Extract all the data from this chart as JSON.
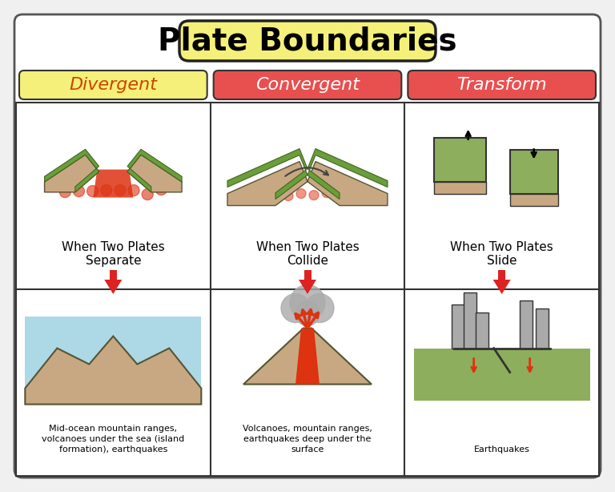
{
  "title": "Plate Boundaries",
  "title_bg": "#f5f07a",
  "title_border": "#222222",
  "title_fontsize": 28,
  "bg_color": "#f0f0f0",
  "card_bg": "#ffffff",
  "columns": [
    "Divergent",
    "Convergent",
    "Transform"
  ],
  "col_colors": [
    "#f5f07a",
    "#e85050",
    "#e85050"
  ],
  "top_descriptions": [
    "When Two Plates\nSeparate",
    "When Two Plates\nCollide",
    "When Two Plates\nSlide"
  ],
  "bottom_descriptions": [
    "Mid-ocean mountain ranges,\nvolcanoes under the sea (island\nformation), earthquakes",
    "Volcanoes, mountain ranges,\nearthquakes deep under the\nsurface",
    "Earthquakes"
  ],
  "arrow_color": "#dd2222",
  "grid_color": "#333333",
  "outer_border": "#555555"
}
